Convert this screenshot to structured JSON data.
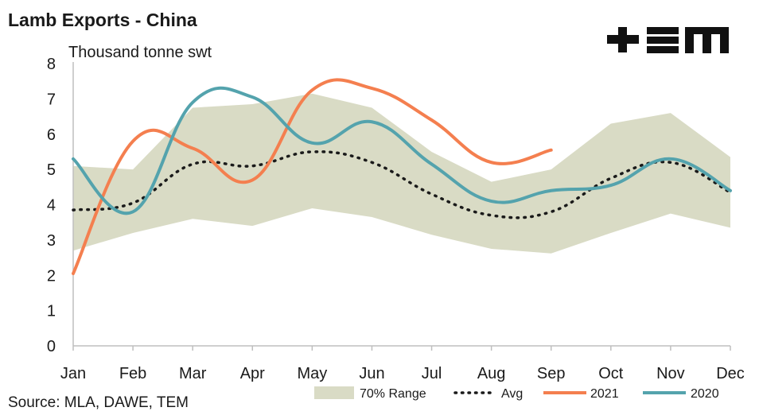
{
  "header": {
    "title": "Lamb Exports - China",
    "logo_text": "TEM"
  },
  "footer": {
    "source": "Source: MLA, DAWE, TEM"
  },
  "colors": {
    "range": "#d9dbc5",
    "avg": "#1a1a1a",
    "s2021": "#f47f4f",
    "s2020": "#54a3ad",
    "axis": "#bfbfbf"
  },
  "chart_data": {
    "type": "line",
    "title": "Lamb Exports - China",
    "ylabel": "Thousand tonne swt",
    "ylim": [
      0,
      8
    ],
    "yticks": [
      0,
      1,
      2,
      3,
      4,
      5,
      6,
      7,
      8
    ],
    "categories": [
      "Jan",
      "Feb",
      "Mar",
      "Apr",
      "May",
      "Jun",
      "Jul",
      "Aug",
      "Sep",
      "Oct",
      "Nov",
      "Dec"
    ],
    "range": {
      "name": "70% Range",
      "lower": [
        2.7,
        3.2,
        3.6,
        3.4,
        3.9,
        3.65,
        3.15,
        2.75,
        2.62,
        3.2,
        3.75,
        3.35
      ],
      "upper": [
        5.1,
        5.0,
        6.75,
        6.85,
        7.15,
        6.75,
        5.5,
        4.65,
        5.0,
        6.3,
        6.6,
        5.35
      ]
    },
    "series": [
      {
        "name": "Avg",
        "values": [
          3.85,
          4.05,
          5.15,
          5.1,
          5.5,
          5.2,
          4.3,
          3.7,
          3.8,
          4.75,
          5.2,
          4.35
        ]
      },
      {
        "name": "2021",
        "values": [
          2.05,
          5.8,
          5.6,
          4.7,
          7.25,
          7.3,
          6.4,
          5.2,
          5.55,
          null,
          null,
          null
        ]
      },
      {
        "name": "2020",
        "values": [
          5.3,
          3.8,
          6.9,
          7.05,
          5.75,
          6.35,
          5.15,
          4.1,
          4.4,
          4.55,
          5.3,
          4.4
        ]
      }
    ],
    "legend": [
      "70% Range",
      "Avg",
      "2021",
      "2020"
    ],
    "legend_position": "bottom"
  }
}
